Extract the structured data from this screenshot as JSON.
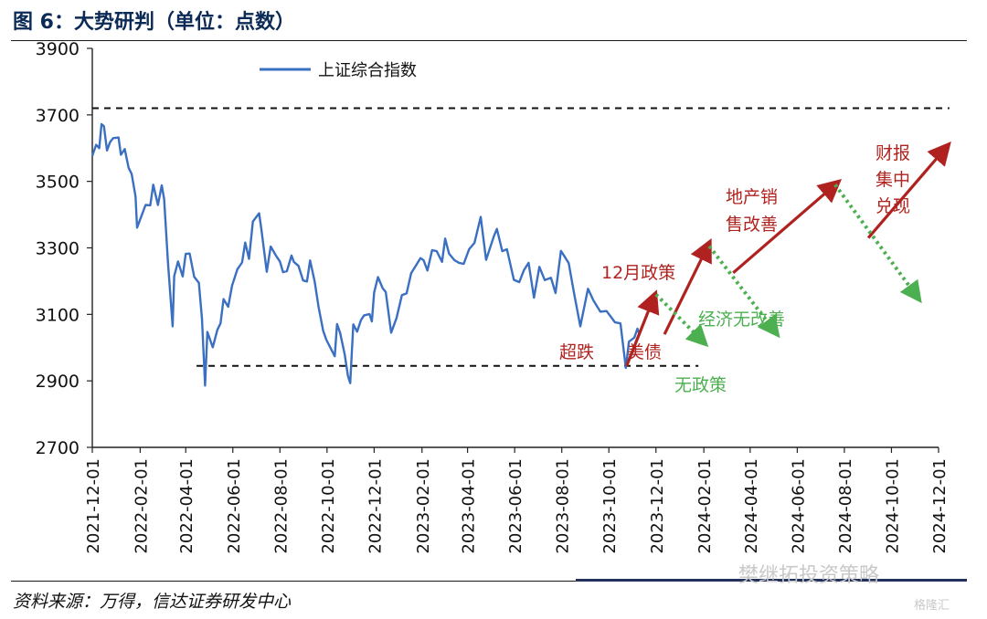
{
  "figure": {
    "title": "图 6：大势研判（单位：点数）",
    "source": "资料来源：万得，信达证券研发中心",
    "watermark": "樊继拓投资策略",
    "watermark2": "格隆汇"
  },
  "chart_data": {
    "type": "line",
    "title": "",
    "ylabel": "",
    "xlabel": "",
    "ylim": [
      2700,
      3900
    ],
    "yticks": [
      2700,
      2900,
      3100,
      3300,
      3500,
      3700,
      3900
    ],
    "xlim": [
      "2021-12-01",
      "2024-12-01"
    ],
    "xticks": [
      "2021-12-01",
      "2022-02-01",
      "2022-04-01",
      "2022-06-01",
      "2022-08-01",
      "2022-10-01",
      "2022-12-01",
      "2023-02-01",
      "2023-04-01",
      "2023-06-01",
      "2023-08-01",
      "2023-10-01",
      "2023-12-01",
      "2024-02-01",
      "2024-04-01",
      "2024-06-01",
      "2024-08-01",
      "2024-10-01",
      "2024-12-01"
    ],
    "legend": "top-left",
    "series": [
      {
        "name": "上证综合指数",
        "color": "#3a6fc1",
        "points": [
          [
            "2021-12-01",
            3577
          ],
          [
            "2021-12-06",
            3610
          ],
          [
            "2021-12-10",
            3600
          ],
          [
            "2021-12-13",
            3672
          ],
          [
            "2021-12-16",
            3666
          ],
          [
            "2021-12-20",
            3593
          ],
          [
            "2021-12-24",
            3618
          ],
          [
            "2021-12-28",
            3630
          ],
          [
            "2022-01-04",
            3632
          ],
          [
            "2022-01-07",
            3580
          ],
          [
            "2022-01-12",
            3597
          ],
          [
            "2022-01-17",
            3541
          ],
          [
            "2022-01-21",
            3522
          ],
          [
            "2022-01-26",
            3455
          ],
          [
            "2022-01-28",
            3361
          ],
          [
            "2022-02-08",
            3429
          ],
          [
            "2022-02-14",
            3428
          ],
          [
            "2022-02-18",
            3490
          ],
          [
            "2022-02-24",
            3429
          ],
          [
            "2022-03-01",
            3488
          ],
          [
            "2022-03-04",
            3447
          ],
          [
            "2022-03-09",
            3256
          ],
          [
            "2022-03-15",
            3064
          ],
          [
            "2022-03-17",
            3215
          ],
          [
            "2022-03-22",
            3259
          ],
          [
            "2022-03-28",
            3214
          ],
          [
            "2022-04-01",
            3282
          ],
          [
            "2022-04-06",
            3283
          ],
          [
            "2022-04-12",
            3213
          ],
          [
            "2022-04-18",
            3195
          ],
          [
            "2022-04-22",
            3087
          ],
          [
            "2022-04-26",
            2886
          ],
          [
            "2022-04-29",
            3047
          ],
          [
            "2022-05-06",
            3001
          ],
          [
            "2022-05-12",
            3054
          ],
          [
            "2022-05-16",
            3073
          ],
          [
            "2022-05-20",
            3146
          ],
          [
            "2022-05-26",
            3123
          ],
          [
            "2022-05-31",
            3186
          ],
          [
            "2022-06-07",
            3236
          ],
          [
            "2022-06-13",
            3256
          ],
          [
            "2022-06-17",
            3316
          ],
          [
            "2022-06-22",
            3267
          ],
          [
            "2022-06-27",
            3379
          ],
          [
            "2022-07-05",
            3404
          ],
          [
            "2022-07-08",
            3356
          ],
          [
            "2022-07-15",
            3228
          ],
          [
            "2022-07-20",
            3304
          ],
          [
            "2022-07-27",
            3276
          ],
          [
            "2022-08-01",
            3259
          ],
          [
            "2022-08-05",
            3227
          ],
          [
            "2022-08-10",
            3230
          ],
          [
            "2022-08-16",
            3277
          ],
          [
            "2022-08-19",
            3258
          ],
          [
            "2022-08-25",
            3246
          ],
          [
            "2022-08-31",
            3202
          ],
          [
            "2022-09-05",
            3199
          ],
          [
            "2022-09-09",
            3262
          ],
          [
            "2022-09-15",
            3199
          ],
          [
            "2022-09-20",
            3122
          ],
          [
            "2022-09-26",
            3051
          ],
          [
            "2022-09-30",
            3024
          ],
          [
            "2022-10-11",
            2974
          ],
          [
            "2022-10-14",
            3071
          ],
          [
            "2022-10-18",
            3044
          ],
          [
            "2022-10-24",
            2978
          ],
          [
            "2022-10-28",
            2915
          ],
          [
            "2022-10-31",
            2893
          ],
          [
            "2022-11-04",
            3070
          ],
          [
            "2022-11-09",
            3048
          ],
          [
            "2022-11-14",
            3083
          ],
          [
            "2022-11-18",
            3097
          ],
          [
            "2022-11-25",
            3101
          ],
          [
            "2022-11-28",
            3079
          ],
          [
            "2022-12-01",
            3166
          ],
          [
            "2022-12-06",
            3212
          ],
          [
            "2022-12-12",
            3179
          ],
          [
            "2022-12-16",
            3167
          ],
          [
            "2022-12-23",
            3045
          ],
          [
            "2022-12-30",
            3089
          ],
          [
            "2023-01-06",
            3158
          ],
          [
            "2023-01-12",
            3163
          ],
          [
            "2023-01-18",
            3224
          ],
          [
            "2023-01-30",
            3269
          ],
          [
            "2023-02-03",
            3263
          ],
          [
            "2023-02-08",
            3232
          ],
          [
            "2023-02-14",
            3293
          ],
          [
            "2023-02-20",
            3290
          ],
          [
            "2023-02-27",
            3258
          ],
          [
            "2023-03-03",
            3328
          ],
          [
            "2023-03-08",
            3283
          ],
          [
            "2023-03-15",
            3263
          ],
          [
            "2023-03-21",
            3255
          ],
          [
            "2023-03-27",
            3252
          ],
          [
            "2023-04-03",
            3296
          ],
          [
            "2023-04-10",
            3315
          ],
          [
            "2023-04-18",
            3393
          ],
          [
            "2023-04-25",
            3264
          ],
          [
            "2023-05-05",
            3334
          ],
          [
            "2023-05-09",
            3357
          ],
          [
            "2023-05-16",
            3290
          ],
          [
            "2023-05-22",
            3296
          ],
          [
            "2023-05-31",
            3204
          ],
          [
            "2023-06-07",
            3197
          ],
          [
            "2023-06-13",
            3233
          ],
          [
            "2023-06-19",
            3255
          ],
          [
            "2023-06-26",
            3150
          ],
          [
            "2023-07-03",
            3243
          ],
          [
            "2023-07-10",
            3203
          ],
          [
            "2023-07-18",
            3210
          ],
          [
            "2023-07-24",
            3164
          ],
          [
            "2023-07-31",
            3291
          ],
          [
            "2023-08-03",
            3280
          ],
          [
            "2023-08-10",
            3254
          ],
          [
            "2023-08-17",
            3163
          ],
          [
            "2023-08-25",
            3064
          ],
          [
            "2023-08-28",
            3098
          ],
          [
            "2023-09-04",
            3177
          ],
          [
            "2023-09-11",
            3142
          ],
          [
            "2023-09-20",
            3108
          ],
          [
            "2023-09-28",
            3110
          ],
          [
            "2023-10-09",
            3076
          ],
          [
            "2023-10-16",
            3073
          ],
          [
            "2023-10-23",
            2939
          ],
          [
            "2023-10-27",
            3018
          ],
          [
            "2023-11-03",
            3030
          ],
          [
            "2023-11-07",
            3057
          ],
          [
            "2023-11-10",
            3038
          ]
        ]
      }
    ],
    "reference_lines": [
      {
        "y": 3720,
        "style": "dashed",
        "x_from": "2021-12-01",
        "x_to": "2024-12-15"
      },
      {
        "y": 2945,
        "style": "dashed",
        "x_from": "2022-04-15",
        "x_to": "2024-01-25"
      }
    ],
    "scenario_arrows": [
      {
        "color": "#b0221f",
        "from": [
          "2023-10-24",
          2945
        ],
        "to": [
          "2023-11-28",
          3150
        ]
      },
      {
        "color": "#b0221f",
        "from": [
          "2023-12-12",
          3040
        ],
        "to": [
          "2024-02-06",
          3305
        ]
      },
      {
        "color": "#b0221f",
        "from": [
          "2024-03-10",
          3225
        ],
        "to": [
          "2024-07-20",
          3490
        ]
      },
      {
        "color": "#b0221f",
        "from": [
          "2024-09-01",
          3330
        ],
        "to": [
          "2024-12-10",
          3600
        ]
      }
    ],
    "scenario_dotted": [
      {
        "color": "#4caf50",
        "from": [
          "2023-12-01",
          3160
        ],
        "to": [
          "2024-01-28",
          3025
        ]
      },
      {
        "color": "#4caf50",
        "from": [
          "2024-02-08",
          3305
        ],
        "to": [
          "2024-05-01",
          3055
        ]
      },
      {
        "color": "#4caf50",
        "from": [
          "2024-07-20",
          3490
        ],
        "to": [
          "2024-11-01",
          3160
        ]
      }
    ],
    "annotations": [
      {
        "text": "超跌",
        "color": "#b0221f"
      },
      {
        "text": "美债",
        "color": "#b0221f"
      },
      {
        "text": "无政策",
        "color": "#4caf50"
      },
      {
        "text": "12月政策",
        "color": "#b0221f"
      },
      {
        "text": "经济无改善",
        "color": "#4caf50"
      },
      {
        "text": "地产销\n售改善",
        "color": "#b0221f"
      },
      {
        "text": "财报\n集中\n兑现",
        "color": "#b0221f"
      }
    ]
  }
}
